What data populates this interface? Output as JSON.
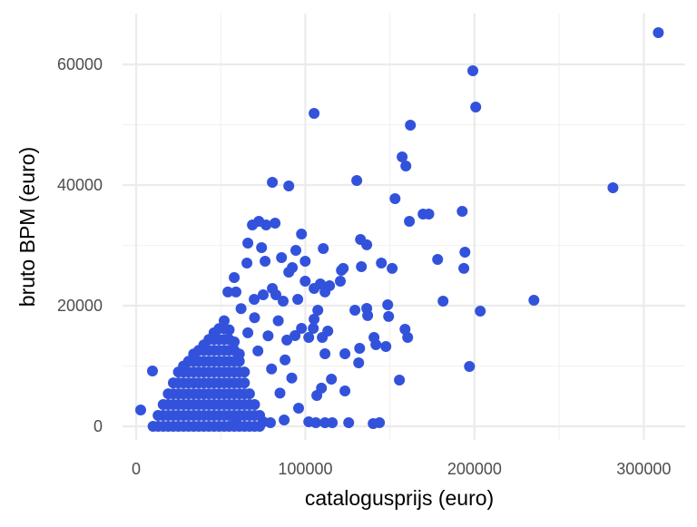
{
  "chart_data": {
    "type": "scatter",
    "title": "",
    "xlabel": "catalogusprijs (euro)",
    "ylabel": "bruto BPM (euro)",
    "xlim": [
      -8050,
      324500
    ],
    "ylim": [
      -2260,
      68420
    ],
    "x_ticks": [
      0,
      100000,
      200000,
      300000
    ],
    "x_tick_labels": [
      "0",
      "100000",
      "200000",
      "300000"
    ],
    "y_ticks": [
      0,
      20000,
      40000,
      60000
    ],
    "y_tick_labels": [
      "0",
      "20000",
      "40000",
      "60000"
    ],
    "grid": true,
    "legend": "none",
    "point_color": "#3352DB",
    "points": [
      [
        308600,
        65260
      ],
      [
        199000,
        58950
      ],
      [
        200700,
        52930
      ],
      [
        105200,
        51880
      ],
      [
        162100,
        49920
      ],
      [
        157200,
        44660
      ],
      [
        159400,
        43160
      ],
      [
        80500,
        40450
      ],
      [
        90200,
        39850
      ],
      [
        130400,
        40750
      ],
      [
        281800,
        39550
      ],
      [
        153000,
        37740
      ],
      [
        192700,
        35640
      ],
      [
        169600,
        35190
      ],
      [
        173000,
        35190
      ],
      [
        161500,
        33980
      ],
      [
        72500,
        33980
      ],
      [
        76800,
        33380
      ],
      [
        68700,
        33380
      ],
      [
        82100,
        33680
      ],
      [
        97700,
        31880
      ],
      [
        66000,
        30380
      ],
      [
        132600,
        30980
      ],
      [
        136300,
        30080
      ],
      [
        194300,
        28870
      ],
      [
        144900,
        27070
      ],
      [
        133100,
        26470
      ],
      [
        178200,
        27670
      ],
      [
        193700,
        26170
      ],
      [
        151300,
        26170
      ],
      [
        122400,
        26170
      ],
      [
        110600,
        29470
      ],
      [
        99900,
        27370
      ],
      [
        235100,
        20900
      ],
      [
        181400,
        20750
      ],
      [
        203400,
        19100
      ],
      [
        197000,
        9920
      ],
      [
        155600,
        7670
      ],
      [
        158900,
        16090
      ],
      [
        160500,
        14740
      ],
      [
        148700,
        20150
      ],
      [
        149200,
        18200
      ],
      [
        136300,
        19550
      ],
      [
        136800,
        18350
      ],
      [
        129300,
        19250
      ],
      [
        123400,
        5860
      ],
      [
        115400,
        7820
      ],
      [
        106800,
        5110
      ],
      [
        109500,
        6320
      ],
      [
        111600,
        12030
      ],
      [
        123400,
        12030
      ],
      [
        110000,
        14740
      ],
      [
        113300,
        15790
      ],
      [
        131500,
        10530
      ],
      [
        132100,
        12930
      ],
      [
        140600,
        14740
      ],
      [
        141700,
        13530
      ],
      [
        147600,
        13230
      ],
      [
        114300,
        23300
      ],
      [
        108900,
        23610
      ],
      [
        120700,
        24060
      ],
      [
        121300,
        25860
      ],
      [
        105200,
        22860
      ],
      [
        99900,
        24060
      ],
      [
        111600,
        22260
      ],
      [
        107400,
        19250
      ],
      [
        105200,
        17750
      ],
      [
        104700,
        16240
      ],
      [
        102000,
        14740
      ],
      [
        97700,
        16240
      ],
      [
        93900,
        15040
      ],
      [
        89100,
        14290
      ],
      [
        102000,
        750
      ],
      [
        106200,
        600
      ],
      [
        111600,
        600
      ],
      [
        115900,
        600
      ],
      [
        125600,
        600
      ],
      [
        140100,
        450
      ],
      [
        143800,
        600
      ],
      [
        2700,
        2700
      ],
      [
        9660,
        9170
      ],
      [
        79400,
        600
      ],
      [
        87500,
        1050
      ],
      [
        75100,
        750
      ],
      [
        59000,
        750
      ],
      [
        58000,
        24660
      ],
      [
        54200,
        22260
      ],
      [
        59000,
        22260
      ],
      [
        65500,
        27070
      ],
      [
        74100,
        29620
      ],
      [
        76200,
        27370
      ],
      [
        85900,
        27970
      ],
      [
        90200,
        25560
      ],
      [
        92300,
        26320
      ],
      [
        94400,
        29170
      ],
      [
        82600,
        21800
      ],
      [
        80500,
        22860
      ],
      [
        95500,
        21050
      ],
      [
        86900,
        20750
      ],
      [
        75100,
        21800
      ],
      [
        69800,
        21050
      ],
      [
        84000,
        17500
      ],
      [
        78000,
        15000
      ],
      [
        88000,
        11000
      ],
      [
        92000,
        8000
      ],
      [
        85000,
        5500
      ],
      [
        96000,
        3000
      ],
      [
        80000,
        9500
      ],
      [
        72000,
        12500
      ],
      [
        70000,
        18000
      ],
      [
        66000,
        15500
      ],
      [
        62000,
        19500
      ],
      [
        10000,
        0
      ],
      [
        13000,
        0
      ],
      [
        13000,
        1800
      ],
      [
        16000,
        0
      ],
      [
        16000,
        1800
      ],
      [
        16000,
        3600
      ],
      [
        19000,
        0
      ],
      [
        19000,
        1800
      ],
      [
        19000,
        3600
      ],
      [
        19000,
        5400
      ],
      [
        22000,
        0
      ],
      [
        22000,
        1800
      ],
      [
        22000,
        3600
      ],
      [
        22000,
        5400
      ],
      [
        22000,
        7200
      ],
      [
        25000,
        0
      ],
      [
        25000,
        1800
      ],
      [
        25000,
        3600
      ],
      [
        25000,
        5400
      ],
      [
        25000,
        7200
      ],
      [
        25000,
        9000
      ],
      [
        28000,
        0
      ],
      [
        28000,
        1800
      ],
      [
        28000,
        3600
      ],
      [
        28000,
        5400
      ],
      [
        28000,
        7200
      ],
      [
        28000,
        9000
      ],
      [
        28000,
        10000
      ],
      [
        31000,
        0
      ],
      [
        31000,
        1800
      ],
      [
        31000,
        3600
      ],
      [
        31000,
        5400
      ],
      [
        31000,
        7200
      ],
      [
        31000,
        9000
      ],
      [
        31000,
        10800
      ],
      [
        34000,
        0
      ],
      [
        34000,
        1800
      ],
      [
        34000,
        3600
      ],
      [
        34000,
        5400
      ],
      [
        34000,
        7200
      ],
      [
        34000,
        9000
      ],
      [
        34000,
        10800
      ],
      [
        34000,
        12000
      ],
      [
        37000,
        0
      ],
      [
        37000,
        1800
      ],
      [
        37000,
        3600
      ],
      [
        37000,
        5400
      ],
      [
        37000,
        7200
      ],
      [
        37000,
        9000
      ],
      [
        37000,
        10800
      ],
      [
        37000,
        12600
      ],
      [
        40000,
        0
      ],
      [
        40000,
        1800
      ],
      [
        40000,
        3600
      ],
      [
        40000,
        5400
      ],
      [
        40000,
        7200
      ],
      [
        40000,
        9000
      ],
      [
        40000,
        10800
      ],
      [
        40000,
        12600
      ],
      [
        40000,
        13500
      ],
      [
        43000,
        0
      ],
      [
        43000,
        1800
      ],
      [
        43000,
        3600
      ],
      [
        43000,
        5400
      ],
      [
        43000,
        7200
      ],
      [
        43000,
        9000
      ],
      [
        43000,
        10800
      ],
      [
        43000,
        12600
      ],
      [
        43000,
        14400
      ],
      [
        46000,
        0
      ],
      [
        46000,
        1800
      ],
      [
        46000,
        3600
      ],
      [
        46000,
        5400
      ],
      [
        46000,
        7200
      ],
      [
        46000,
        9000
      ],
      [
        46000,
        10800
      ],
      [
        46000,
        12600
      ],
      [
        46000,
        14400
      ],
      [
        46000,
        15500
      ],
      [
        49000,
        0
      ],
      [
        49000,
        1800
      ],
      [
        49000,
        3600
      ],
      [
        49000,
        5400
      ],
      [
        49000,
        7200
      ],
      [
        49000,
        9000
      ],
      [
        49000,
        10800
      ],
      [
        49000,
        12600
      ],
      [
        49000,
        14400
      ],
      [
        49000,
        16200
      ],
      [
        52000,
        0
      ],
      [
        52000,
        1800
      ],
      [
        52000,
        3600
      ],
      [
        52000,
        5400
      ],
      [
        52000,
        7200
      ],
      [
        52000,
        9000
      ],
      [
        52000,
        10800
      ],
      [
        52000,
        12600
      ],
      [
        52000,
        14400
      ],
      [
        52000,
        16200
      ],
      [
        52000,
        17500
      ],
      [
        55000,
        0
      ],
      [
        55000,
        1800
      ],
      [
        55000,
        3600
      ],
      [
        55000,
        5400
      ],
      [
        55000,
        7200
      ],
      [
        55000,
        9000
      ],
      [
        55000,
        10800
      ],
      [
        55000,
        12600
      ],
      [
        55000,
        14400
      ],
      [
        55000,
        16000
      ],
      [
        58000,
        0
      ],
      [
        58000,
        1800
      ],
      [
        58000,
        3600
      ],
      [
        58000,
        5400
      ],
      [
        58000,
        7200
      ],
      [
        58000,
        9000
      ],
      [
        58000,
        10800
      ],
      [
        58000,
        12600
      ],
      [
        58000,
        14000
      ],
      [
        61000,
        0
      ],
      [
        61000,
        1800
      ],
      [
        61000,
        3600
      ],
      [
        61000,
        5400
      ],
      [
        61000,
        7200
      ],
      [
        61000,
        9000
      ],
      [
        61000,
        10800
      ],
      [
        61000,
        12000
      ],
      [
        64000,
        0
      ],
      [
        64000,
        1800
      ],
      [
        64000,
        3600
      ],
      [
        64000,
        5400
      ],
      [
        64000,
        7200
      ],
      [
        64000,
        9000
      ],
      [
        67000,
        0
      ],
      [
        67000,
        1800
      ],
      [
        67000,
        3600
      ],
      [
        67000,
        5400
      ],
      [
        70000,
        0
      ],
      [
        70000,
        1800
      ],
      [
        70000,
        3600
      ],
      [
        73000,
        0
      ],
      [
        73000,
        1800
      ]
    ]
  }
}
